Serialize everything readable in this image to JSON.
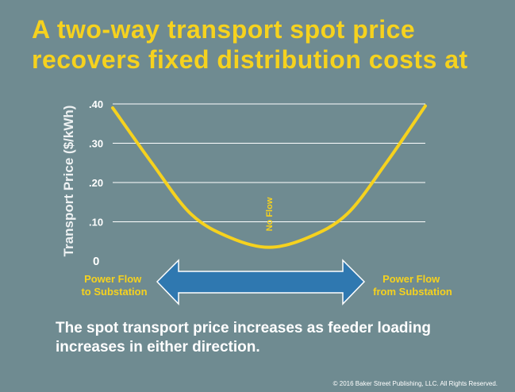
{
  "title_lines": [
    "A two-way transport spot price",
    "recovers fixed distribution costs at"
  ],
  "body_text": {
    "line1": "The spot transport price increases as feeder loading",
    "line2": "increases in either direction."
  },
  "copyright": "© 2016 Baker Street Publishing, LLC.  All Rights Reserved.",
  "colors": {
    "background": "#6f8b91",
    "accent": "#f6d21e",
    "arrow_fill": "#2f78b0",
    "arrow_stroke": "#ffffff",
    "text": "#ffffff",
    "grid": "#ffffff"
  },
  "chart_data": {
    "type": "line",
    "ylabel": "Transport Price ($/kWh)",
    "yticks": [
      {
        "value": 0,
        "label": "0"
      },
      {
        "value": 0.1,
        "label": ".10"
      },
      {
        "value": 0.2,
        "label": ".20"
      },
      {
        "value": 0.3,
        "label": ".30"
      },
      {
        "value": 0.4,
        "label": ".40"
      }
    ],
    "ylim": [
      0,
      0.4
    ],
    "xlim": [
      -1,
      1
    ],
    "grid": true,
    "series": [
      {
        "x": [
          -1.0,
          -0.75,
          -0.5,
          -0.25,
          0.0,
          0.25,
          0.5,
          0.75,
          1.0
        ],
        "y": [
          0.39,
          0.25,
          0.12,
          0.06,
          0.035,
          0.06,
          0.12,
          0.25,
          0.395
        ]
      }
    ],
    "annotations": {
      "center_label": "No Flow",
      "left_label": [
        "Power Flow",
        "to Substation"
      ],
      "right_label": [
        "Power Flow",
        "from Substation"
      ]
    }
  }
}
